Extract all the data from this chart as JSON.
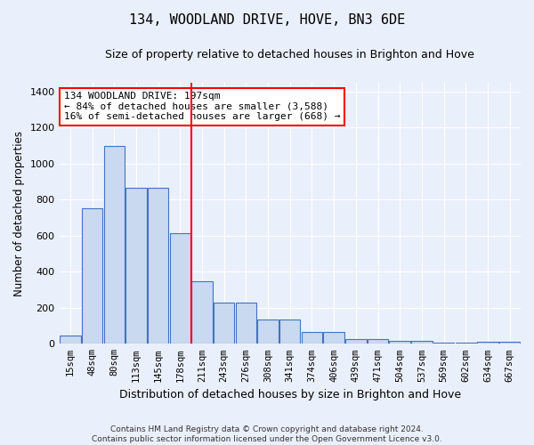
{
  "title": "134, WOODLAND DRIVE, HOVE, BN3 6DE",
  "subtitle": "Size of property relative to detached houses in Brighton and Hove",
  "xlabel": "Distribution of detached houses by size in Brighton and Hove",
  "ylabel": "Number of detached properties",
  "footer_line1": "Contains HM Land Registry data © Crown copyright and database right 2024.",
  "footer_line2": "Contains public sector information licensed under the Open Government Licence v3.0.",
  "bin_labels": [
    "15sqm",
    "48sqm",
    "80sqm",
    "113sqm",
    "145sqm",
    "178sqm",
    "211sqm",
    "243sqm",
    "276sqm",
    "308sqm",
    "341sqm",
    "374sqm",
    "406sqm",
    "439sqm",
    "471sqm",
    "504sqm",
    "537sqm",
    "569sqm",
    "602sqm",
    "634sqm",
    "667sqm"
  ],
  "bar_values": [
    47,
    750,
    1100,
    868,
    868,
    615,
    345,
    228,
    228,
    135,
    135,
    65,
    65,
    25,
    25,
    18,
    18,
    5,
    5,
    9,
    9
  ],
  "bar_color": "#c9d9f0",
  "bar_edge_color": "#4472c4",
  "background_color": "#eaf0fb",
  "grid_color": "#ffffff",
  "vline_x_index": 6,
  "vline_color": "red",
  "annotation_text": "134 WOODLAND DRIVE: 197sqm\n← 84% of detached houses are smaller (3,588)\n16% of semi-detached houses are larger (668) →",
  "annotation_box_color": "white",
  "annotation_box_edge_color": "red",
  "ylim": [
    0,
    1450
  ],
  "yticks": [
    0,
    200,
    400,
    600,
    800,
    1000,
    1200,
    1400
  ]
}
